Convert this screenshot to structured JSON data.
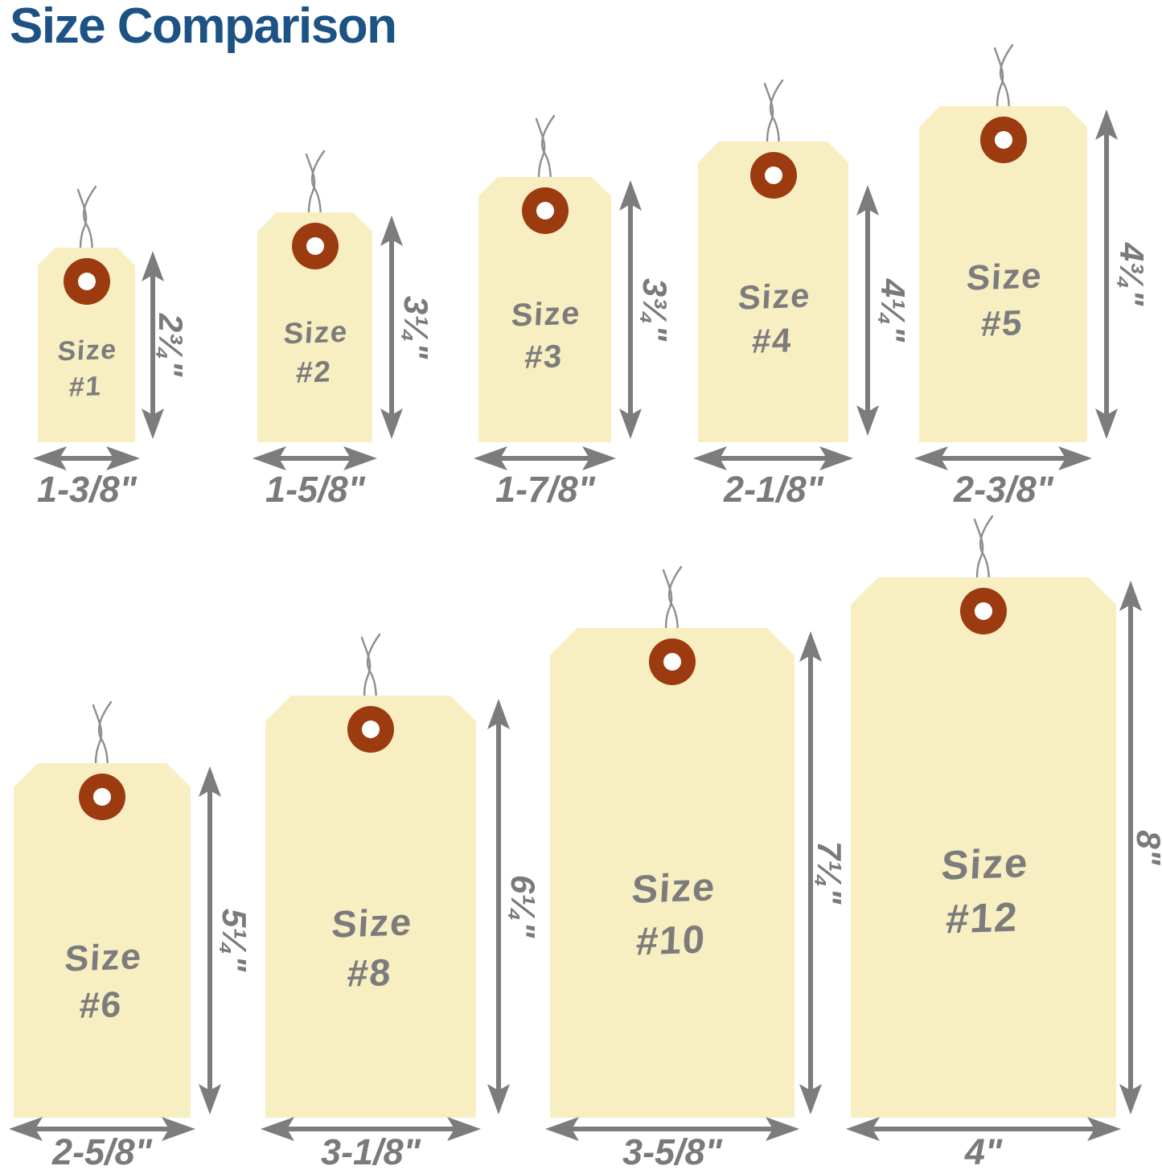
{
  "title": "Size Comparison",
  "colors": {
    "background": "#ffffff",
    "title": "#1c5284",
    "tag_fill": "#f7eec2",
    "grommet": "#9c3a10",
    "hole": "#ffffff",
    "wire": "#8e8e8e",
    "arrow": "#7c7c7c",
    "dim_text": "#7a7a7a",
    "tag_text": "#7c7c7c"
  },
  "tags": [
    {
      "id": "1",
      "label_line1": "Size",
      "label_line2": "#1",
      "width_label": "1-3/8\"",
      "height_label": "2¾\""
    },
    {
      "id": "2",
      "label_line1": "Size",
      "label_line2": "#2",
      "width_label": "1-5/8\"",
      "height_label": "3¼\""
    },
    {
      "id": "3",
      "label_line1": "Size",
      "label_line2": "#3",
      "width_label": "1-7/8\"",
      "height_label": "3¾\""
    },
    {
      "id": "4",
      "label_line1": "Size",
      "label_line2": "#4",
      "width_label": "2-1/8\"",
      "height_label": "4¼\""
    },
    {
      "id": "5",
      "label_line1": "Size",
      "label_line2": "#5",
      "width_label": "2-3/8\"",
      "height_label": "4¾\""
    },
    {
      "id": "6",
      "label_line1": "Size",
      "label_line2": "#6",
      "width_label": "2-5/8\"",
      "height_label": "5¼\""
    },
    {
      "id": "8",
      "label_line1": "Size",
      "label_line2": "#8",
      "width_label": "3-1/8\"",
      "height_label": "6¼\""
    },
    {
      "id": "10",
      "label_line1": "Size",
      "label_line2": "#10",
      "width_label": "3-5/8\"",
      "height_label": "7¼\""
    },
    {
      "id": "12",
      "label_line1": "Size",
      "label_line2": "#12",
      "width_label": "4\"",
      "height_label": "8\""
    }
  ]
}
